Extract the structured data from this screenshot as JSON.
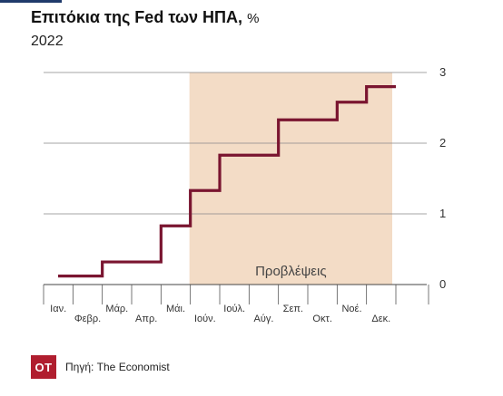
{
  "header": {
    "title": "Επιτόκια της Fed των ΗΠΑ,",
    "title_unit": "%",
    "subtitle": "2022"
  },
  "footer": {
    "logo": "ΟΤ",
    "source": "Πηγή: The Economist"
  },
  "colors": {
    "line": "#7a1530",
    "forecast_band": "#f3dcc6",
    "grid": "#888888",
    "logo_bg": "#b01e2f"
  },
  "chart_data": {
    "type": "line",
    "step": true,
    "title": "Επιτόκια της Fed των ΗΠΑ, %",
    "subtitle": "2022",
    "categories": [
      "Ιαν.",
      "Φεβρ.",
      "Μάρ.",
      "Απρ.",
      "Μάι.",
      "Ιούν.",
      "Ιούλ.",
      "Αύγ.",
      "Σεπ.",
      "Οκτ.",
      "Νοέ.",
      "Δεκ."
    ],
    "series": [
      {
        "values": [
          0.12,
          0.12,
          0.32,
          0.32,
          0.83,
          1.33,
          1.83,
          1.83,
          2.33,
          2.33,
          2.58,
          2.8
        ]
      }
    ],
    "ylim": [
      0,
      3
    ],
    "yticks": [
      "0",
      "1",
      "2",
      "3"
    ],
    "grid": true,
    "annotations": [
      {
        "text": "Προβλέψεις",
        "from_category": "Ιούν.",
        "to_category": "Δεκ."
      }
    ]
  }
}
